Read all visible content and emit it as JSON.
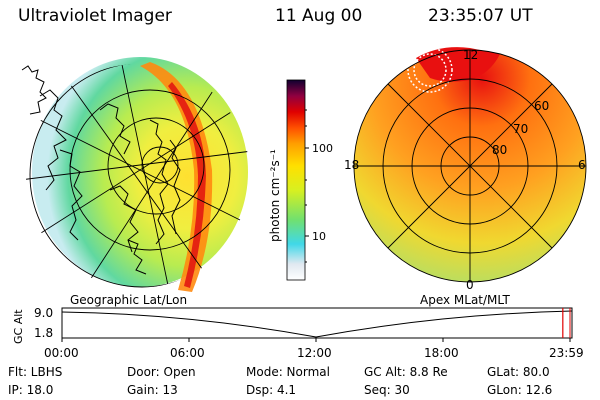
{
  "header": {
    "instrument": "Ultraviolet Imager",
    "date": "11 Aug 00",
    "time": "23:35:07 UT"
  },
  "left_panel": {
    "label": "Geographic Lat/Lon"
  },
  "right_panel": {
    "label": "Apex MLat/MLT",
    "mlt_labels": [
      "12",
      "18",
      "6",
      "0"
    ],
    "lat_labels": [
      "60",
      "70",
      "80"
    ]
  },
  "colorbar": {
    "unit_label": "photon cm⁻²s⁻¹",
    "ticks": [
      "100",
      "10"
    ],
    "scale": "log"
  },
  "altitude_plot": {
    "ylabel": "GC Alt",
    "y_ticks": [
      "9.0",
      "1.8"
    ],
    "x_ticks": [
      "00:00",
      "06:00",
      "12:00",
      "18:00",
      "23:59"
    ],
    "current_time_fraction": 0.982
  },
  "footer": {
    "filter": "Flt: LBHS",
    "ip": "IP: 18.0",
    "door": "Door: Open",
    "gain": "Gain: 13",
    "mode": "Mode: Normal",
    "dsp": "Dsp:    4.1",
    "gc_alt": "GC Alt: 8.8 Re",
    "seq": "Seq: 30",
    "glat": "GLat:   80.0",
    "glon": "GLon:   12.6"
  }
}
